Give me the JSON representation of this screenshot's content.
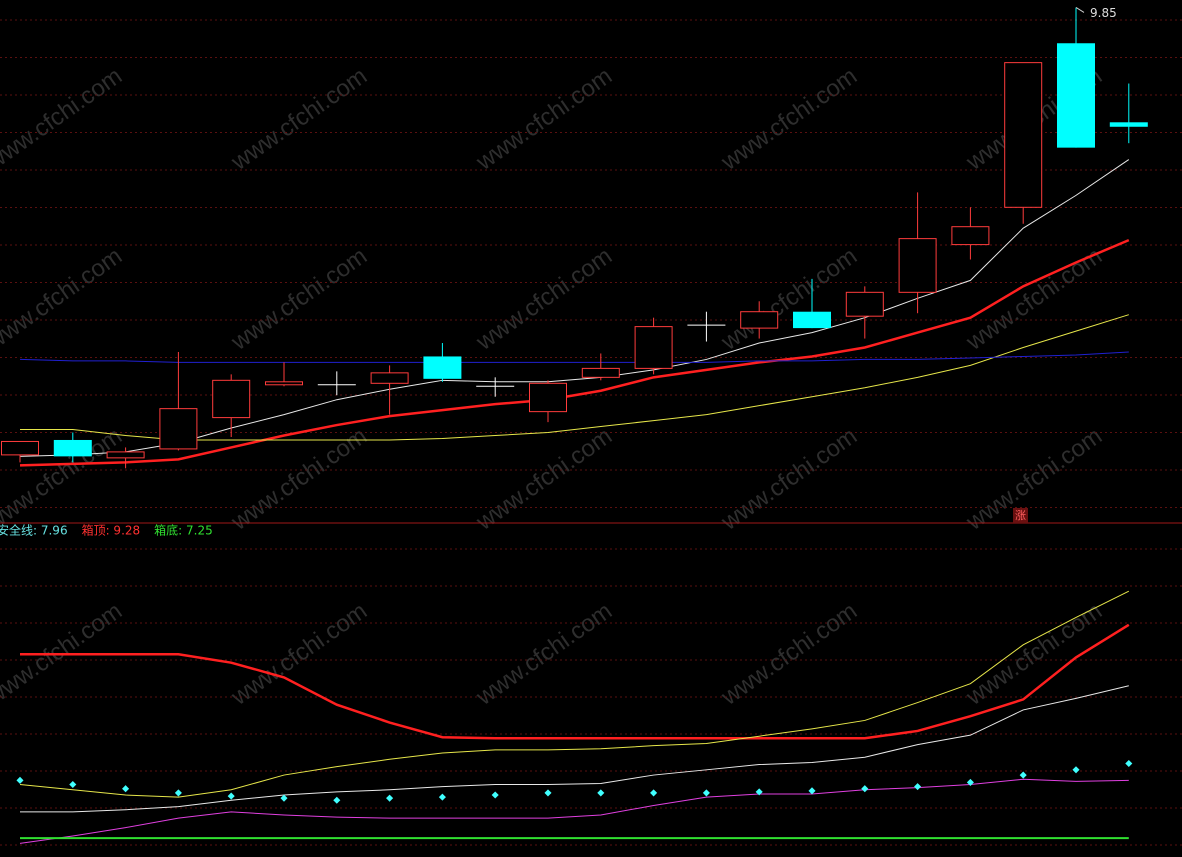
{
  "watermark": "www.cfchi.com",
  "chart_data": [
    {
      "type": "candlestick",
      "ylim": [
        6.4,
        9.9
      ],
      "up_color": "#ff3c3c",
      "down_color": "#00ffff",
      "flat_color": "#ffffff",
      "open": [
        6.85,
        6.95,
        6.83,
        6.89,
        7.1,
        7.32,
        7.32,
        7.33,
        7.51,
        7.31,
        7.14,
        7.37,
        7.43,
        7.72,
        7.7,
        7.81,
        7.78,
        7.94,
        8.26,
        8.51,
        9.61,
        9.08
      ],
      "high": [
        6.94,
        7.0,
        6.9,
        7.54,
        7.39,
        7.47,
        7.41,
        7.45,
        7.6,
        7.37,
        7.35,
        7.53,
        7.77,
        7.81,
        7.88,
        8.03,
        7.98,
        8.61,
        8.51,
        9.48,
        9.85,
        9.34
      ],
      "low": [
        6.8,
        6.8,
        6.76,
        6.88,
        6.97,
        7.31,
        7.25,
        7.12,
        7.34,
        7.24,
        7.07,
        7.35,
        7.39,
        7.61,
        7.63,
        7.7,
        7.63,
        7.8,
        8.16,
        8.4,
        8.91,
        8.94
      ],
      "close": [
        6.94,
        6.84,
        6.87,
        7.16,
        7.35,
        7.34,
        7.32,
        7.4,
        7.36,
        7.31,
        7.33,
        7.43,
        7.71,
        7.72,
        7.81,
        7.7,
        7.94,
        8.3,
        8.38,
        9.48,
        8.91,
        9.05
      ],
      "high_label": "9.85",
      "marker": "涨",
      "overlays": [
        {
          "color": "#e8e8e8",
          "width": 1,
          "values": [
            6.84,
            6.85,
            6.87,
            6.93,
            7.03,
            7.12,
            7.22,
            7.29,
            7.35,
            7.34,
            7.34,
            7.37,
            7.42,
            7.49,
            7.6,
            7.67,
            7.77,
            7.9,
            8.02,
            8.37,
            8.59,
            8.83
          ]
        },
        {
          "color": "#ff2020",
          "width": 2.5,
          "values": [
            6.78,
            6.79,
            6.8,
            6.82,
            6.9,
            6.98,
            7.05,
            7.11,
            7.15,
            7.19,
            7.22,
            7.28,
            7.37,
            7.42,
            7.47,
            7.51,
            7.57,
            7.67,
            7.77,
            7.98,
            8.14,
            8.29
          ]
        },
        {
          "color": "#e6e64a",
          "width": 1,
          "values": [
            7.02,
            7.02,
            6.98,
            6.95,
            6.95,
            6.95,
            6.95,
            6.95,
            6.96,
            6.98,
            7.0,
            7.04,
            7.08,
            7.12,
            7.18,
            7.24,
            7.3,
            7.37,
            7.45,
            7.57,
            7.68,
            7.79
          ]
        },
        {
          "color": "#2020d0",
          "width": 1,
          "values": [
            7.49,
            7.48,
            7.48,
            7.47,
            7.47,
            7.47,
            7.47,
            7.47,
            7.47,
            7.47,
            7.47,
            7.47,
            7.47,
            7.47,
            7.48,
            7.48,
            7.49,
            7.49,
            7.5,
            7.51,
            7.52,
            7.54
          ]
        }
      ]
    },
    {
      "type": "line",
      "ylim": [
        7.07,
        10.24
      ],
      "legend": [
        {
          "label": "安全线: 7.96",
          "color": "#66e0e0"
        },
        {
          "label": "箱顶: 9.28",
          "color": "#ff3030"
        },
        {
          "label": "箱底: 7.25",
          "color": "#30e030"
        }
      ],
      "series": [
        {
          "color": "#ff2020",
          "width": 2.5,
          "style": "line",
          "values": [
            9.0,
            9.0,
            9.0,
            9.0,
            8.92,
            8.78,
            8.52,
            8.35,
            8.21,
            8.2,
            8.2,
            8.2,
            8.2,
            8.2,
            8.2,
            8.2,
            8.2,
            8.27,
            8.41,
            8.57,
            8.97,
            9.28
          ]
        },
        {
          "color": "#e6e64a",
          "width": 1,
          "style": "line",
          "values": [
            7.76,
            7.71,
            7.66,
            7.64,
            7.71,
            7.85,
            7.93,
            8.0,
            8.06,
            8.09,
            8.09,
            8.1,
            8.13,
            8.15,
            8.22,
            8.29,
            8.37,
            8.54,
            8.72,
            9.09,
            9.35,
            9.6
          ]
        },
        {
          "color": "#e8e8e8",
          "width": 1,
          "style": "line",
          "values": [
            7.5,
            7.5,
            7.52,
            7.55,
            7.61,
            7.66,
            7.69,
            7.71,
            7.74,
            7.76,
            7.76,
            7.77,
            7.85,
            7.9,
            7.95,
            7.97,
            8.02,
            8.14,
            8.23,
            8.47,
            8.58,
            8.7
          ]
        },
        {
          "color": "#e040e0",
          "width": 1,
          "style": "line",
          "values": [
            7.2,
            7.27,
            7.35,
            7.44,
            7.5,
            7.47,
            7.45,
            7.44,
            7.44,
            7.44,
            7.44,
            7.47,
            7.56,
            7.64,
            7.67,
            7.67,
            7.71,
            7.73,
            7.76,
            7.81,
            7.79,
            7.8
          ]
        },
        {
          "color": "#40ffff",
          "width": 1,
          "style": "dots",
          "values": [
            7.8,
            7.76,
            7.72,
            7.68,
            7.65,
            7.63,
            7.61,
            7.63,
            7.64,
            7.66,
            7.68,
            7.68,
            7.68,
            7.68,
            7.69,
            7.7,
            7.72,
            7.74,
            7.78,
            7.85,
            7.9,
            7.96
          ]
        },
        {
          "color": "#30e030",
          "width": 2,
          "style": "line",
          "values": [
            7.25,
            7.25,
            7.25,
            7.25,
            7.25,
            7.25,
            7.25,
            7.25,
            7.25,
            7.25,
            7.25,
            7.25,
            7.25,
            7.25,
            7.25,
            7.25,
            7.25,
            7.25,
            7.25,
            7.25,
            7.25,
            7.25
          ]
        }
      ]
    }
  ]
}
